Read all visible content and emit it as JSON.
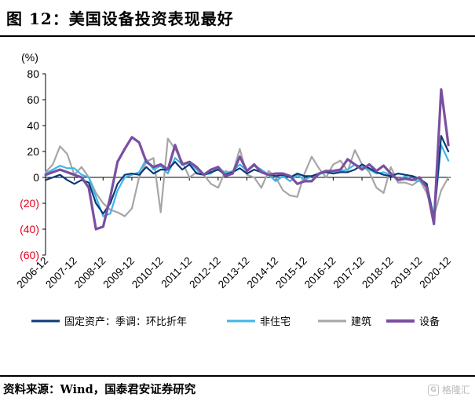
{
  "title": "图 12：美国设备投资表现最好",
  "source": "资料来源：Wind，国泰君安证券研究",
  "watermark": "格隆汇",
  "chart_data": {
    "type": "line",
    "unit_label": "(%)",
    "ylim": [
      -60,
      80
    ],
    "yticks": [
      80,
      60,
      40,
      20,
      0,
      -20,
      -40,
      -60
    ],
    "ytick_labels": [
      "80",
      "60",
      "40",
      "20",
      "0",
      "(20)",
      "(40)",
      "(60)"
    ],
    "negative_tick_color": "#e8001c",
    "x_start": 2006.917,
    "x_end": 2021.0,
    "xtick_positions": [
      2006.917,
      2007.917,
      2008.917,
      2009.917,
      2010.917,
      2011.917,
      2012.917,
      2013.917,
      2014.917,
      2015.917,
      2016.917,
      2017.917,
      2018.917,
      2019.917,
      2020.917
    ],
    "categories": [
      "2006-12",
      "2007-12",
      "2008-12",
      "2009-12",
      "2010-12",
      "2011-12",
      "2012-12",
      "2013-12",
      "2014-12",
      "2015-12",
      "2016-12",
      "2017-12",
      "2018-12",
      "2019-12",
      "2020-12"
    ],
    "grid": false,
    "legend_position": "bottom",
    "series": [
      {
        "name": "固定资产：季调：环比折年",
        "color": "#0b3a78",
        "x": [
          2006.92,
          2007.17,
          2007.42,
          2007.67,
          2007.92,
          2008.17,
          2008.42,
          2008.67,
          2008.92,
          2009.17,
          2009.42,
          2009.67,
          2009.92,
          2010.17,
          2010.42,
          2010.67,
          2010.92,
          2011.17,
          2011.42,
          2011.67,
          2011.92,
          2012.17,
          2012.42,
          2012.67,
          2012.92,
          2013.17,
          2013.42,
          2013.67,
          2013.92,
          2014.17,
          2014.42,
          2014.67,
          2014.92,
          2015.17,
          2015.42,
          2015.67,
          2015.92,
          2016.17,
          2016.42,
          2016.67,
          2016.92,
          2017.17,
          2017.42,
          2017.67,
          2017.92,
          2018.17,
          2018.42,
          2018.67,
          2018.92,
          2019.17,
          2019.42,
          2019.67,
          2019.92,
          2020.17,
          2020.42,
          2020.67,
          2020.92
        ],
        "values": [
          -2,
          0,
          2,
          -2,
          -5,
          -2,
          -4,
          -20,
          -28,
          -20,
          -5,
          2,
          3,
          2,
          8,
          3,
          6,
          6,
          12,
          6,
          10,
          3,
          2,
          4,
          6,
          2,
          4,
          7,
          3,
          6,
          4,
          2,
          1,
          2,
          0,
          3,
          1,
          1,
          3,
          4,
          3,
          4,
          4,
          6,
          10,
          7,
          4,
          2,
          1,
          3,
          2,
          1,
          -1,
          -5,
          -33,
          32,
          20
        ]
      },
      {
        "name": "非住宅",
        "color": "#40b4ea",
        "x": [
          2006.92,
          2007.17,
          2007.42,
          2007.67,
          2007.92,
          2008.17,
          2008.42,
          2008.67,
          2008.92,
          2009.17,
          2009.42,
          2009.67,
          2009.92,
          2010.17,
          2010.42,
          2010.67,
          2010.92,
          2011.17,
          2011.42,
          2011.67,
          2011.92,
          2012.17,
          2012.42,
          2012.67,
          2012.92,
          2013.17,
          2013.42,
          2013.67,
          2013.92,
          2014.17,
          2014.42,
          2014.67,
          2014.92,
          2015.17,
          2015.42,
          2015.67,
          2015.92,
          2016.17,
          2016.42,
          2016.67,
          2016.92,
          2017.17,
          2017.42,
          2017.67,
          2017.92,
          2018.17,
          2018.42,
          2018.67,
          2018.92,
          2019.17,
          2019.42,
          2019.67,
          2019.92,
          2020.17,
          2020.42,
          2020.67,
          2020.92
        ],
        "values": [
          3,
          6,
          9,
          7,
          7,
          2,
          0,
          -15,
          -30,
          -28,
          -10,
          0,
          2,
          4,
          14,
          6,
          9,
          3,
          15,
          10,
          11,
          6,
          2,
          3,
          8,
          3,
          5,
          10,
          5,
          9,
          6,
          2,
          -3,
          1,
          -3,
          2,
          -2,
          1,
          2,
          5,
          3,
          5,
          6,
          10,
          8,
          6,
          3,
          4,
          2,
          -2,
          1,
          -2,
          -3,
          -6,
          -30,
          25,
          13
        ]
      },
      {
        "name": "建筑",
        "color": "#a6a6a6",
        "x": [
          2006.92,
          2007.17,
          2007.42,
          2007.67,
          2007.92,
          2008.17,
          2008.42,
          2008.67,
          2008.92,
          2009.17,
          2009.42,
          2009.67,
          2009.92,
          2010.17,
          2010.42,
          2010.67,
          2010.92,
          2011.17,
          2011.42,
          2011.67,
          2011.92,
          2012.17,
          2012.42,
          2012.67,
          2012.92,
          2013.17,
          2013.42,
          2013.67,
          2013.92,
          2014.17,
          2014.42,
          2014.67,
          2014.92,
          2015.17,
          2015.42,
          2015.67,
          2015.92,
          2016.17,
          2016.42,
          2016.67,
          2016.92,
          2017.17,
          2017.42,
          2017.67,
          2017.92,
          2018.17,
          2018.42,
          2018.67,
          2018.92,
          2019.17,
          2019.42,
          2019.67,
          2019.92,
          2020.17,
          2020.42,
          2020.67,
          2020.92
        ],
        "values": [
          4,
          10,
          24,
          18,
          2,
          8,
          0,
          -12,
          -20,
          -25,
          -27,
          -30,
          -24,
          0,
          12,
          15,
          -27,
          30,
          22,
          12,
          0,
          4,
          2,
          -5,
          -8,
          5,
          3,
          22,
          2,
          0,
          -8,
          5,
          0,
          -10,
          -14,
          -15,
          3,
          16,
          7,
          0,
          10,
          13,
          5,
          21,
          10,
          4,
          -8,
          -12,
          8,
          -4,
          -4,
          -6,
          -2,
          -12,
          -30,
          -10,
          0
        ]
      },
      {
        "name": "设备",
        "color": "#7a4fa0",
        "x": [
          2006.92,
          2007.17,
          2007.42,
          2007.67,
          2007.92,
          2008.17,
          2008.42,
          2008.67,
          2008.92,
          2009.17,
          2009.42,
          2009.67,
          2009.92,
          2010.17,
          2010.42,
          2010.67,
          2010.92,
          2011.17,
          2011.42,
          2011.67,
          2011.92,
          2012.17,
          2012.42,
          2012.67,
          2012.92,
          2013.17,
          2013.42,
          2013.67,
          2013.92,
          2014.17,
          2014.42,
          2014.67,
          2014.92,
          2015.17,
          2015.42,
          2015.67,
          2015.92,
          2016.17,
          2016.42,
          2016.67,
          2016.92,
          2017.17,
          2017.42,
          2017.67,
          2017.92,
          2018.17,
          2018.42,
          2018.67,
          2018.92,
          2019.17,
          2019.42,
          2019.67,
          2019.92,
          2020.17,
          2020.42,
          2020.67,
          2020.92
        ],
        "values": [
          2,
          4,
          6,
          4,
          2,
          0,
          -8,
          -40,
          -38,
          -15,
          12,
          22,
          31,
          27,
          12,
          8,
          10,
          6,
          25,
          10,
          12,
          8,
          2,
          6,
          8,
          1,
          3,
          16,
          5,
          10,
          4,
          2,
          3,
          3,
          1,
          -5,
          -3,
          -3,
          3,
          5,
          5,
          6,
          14,
          10,
          6,
          10,
          5,
          9,
          3,
          -2,
          -1,
          -2,
          0,
          -8,
          -36,
          68,
          25
        ]
      }
    ]
  }
}
